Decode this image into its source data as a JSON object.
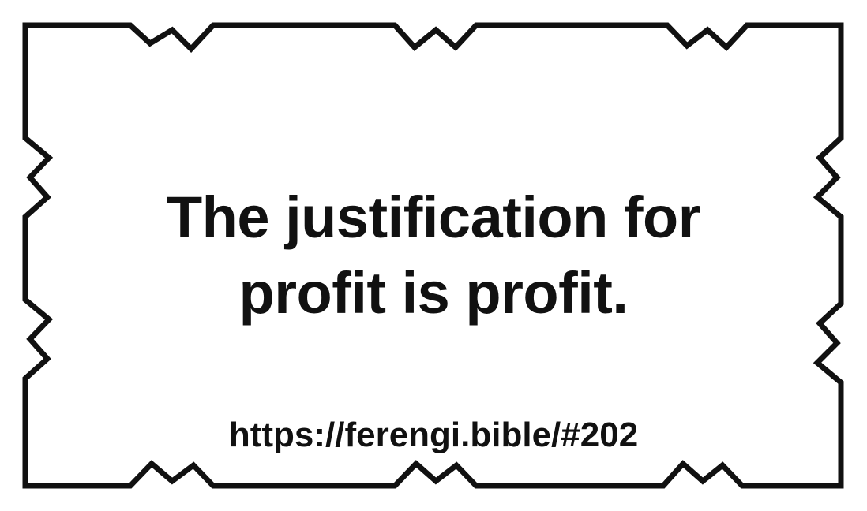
{
  "card": {
    "quote_line_1": "The justification for",
    "quote_line_2": "profit is profit.",
    "url": "https://ferengi.bible/#202"
  },
  "colors": {
    "border": "#111111",
    "text": "#111111",
    "background": "#ffffff"
  }
}
